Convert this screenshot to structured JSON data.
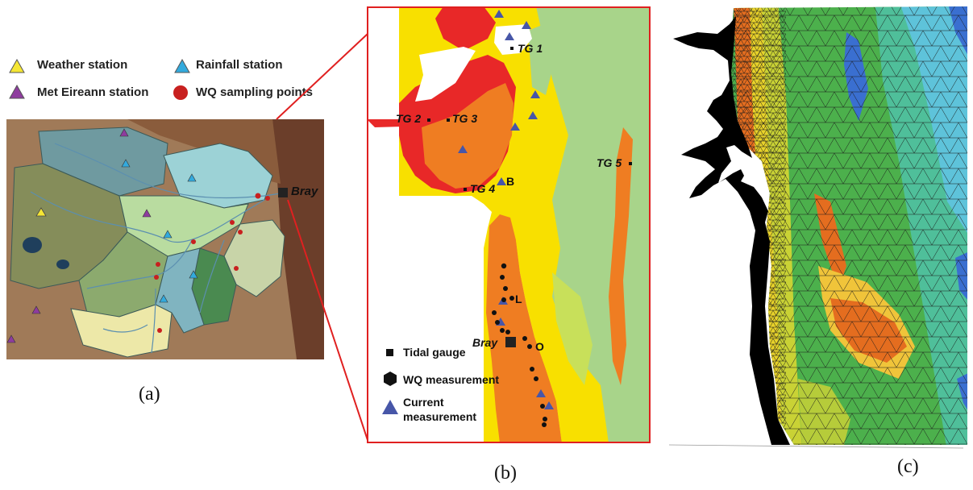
{
  "panel_a": {
    "legend": {
      "weather": {
        "label": "Weather station",
        "color": "#f5e634"
      },
      "rainfall": {
        "label": "Rainfall station",
        "color": "#33aadd"
      },
      "met": {
        "label": "Met Eireann station",
        "color": "#8e3c9e"
      },
      "wq": {
        "label": "WQ sampling points",
        "color": "#c8201f"
      }
    },
    "bray_label": "Bray",
    "caption": "(a)"
  },
  "panel_b": {
    "tidal_gauges": [
      "TG 1",
      "TG 2",
      "TG 3",
      "TG 4",
      "TG 5"
    ],
    "current_points": [
      "B",
      "L",
      "O"
    ],
    "bray_label": "Bray",
    "legend": {
      "tidal": "Tidal gauge",
      "wq": "WQ measurement",
      "current_line1": "Current",
      "current_line2": "measurement"
    },
    "caption": "(b)"
  },
  "panel_c": {
    "caption": "(c)"
  },
  "colors": {
    "frame": "#e02020",
    "current": "#4756a8",
    "sea_yellow": "#f8e000",
    "orange": "#ef7d22",
    "red": "#e82828"
  }
}
